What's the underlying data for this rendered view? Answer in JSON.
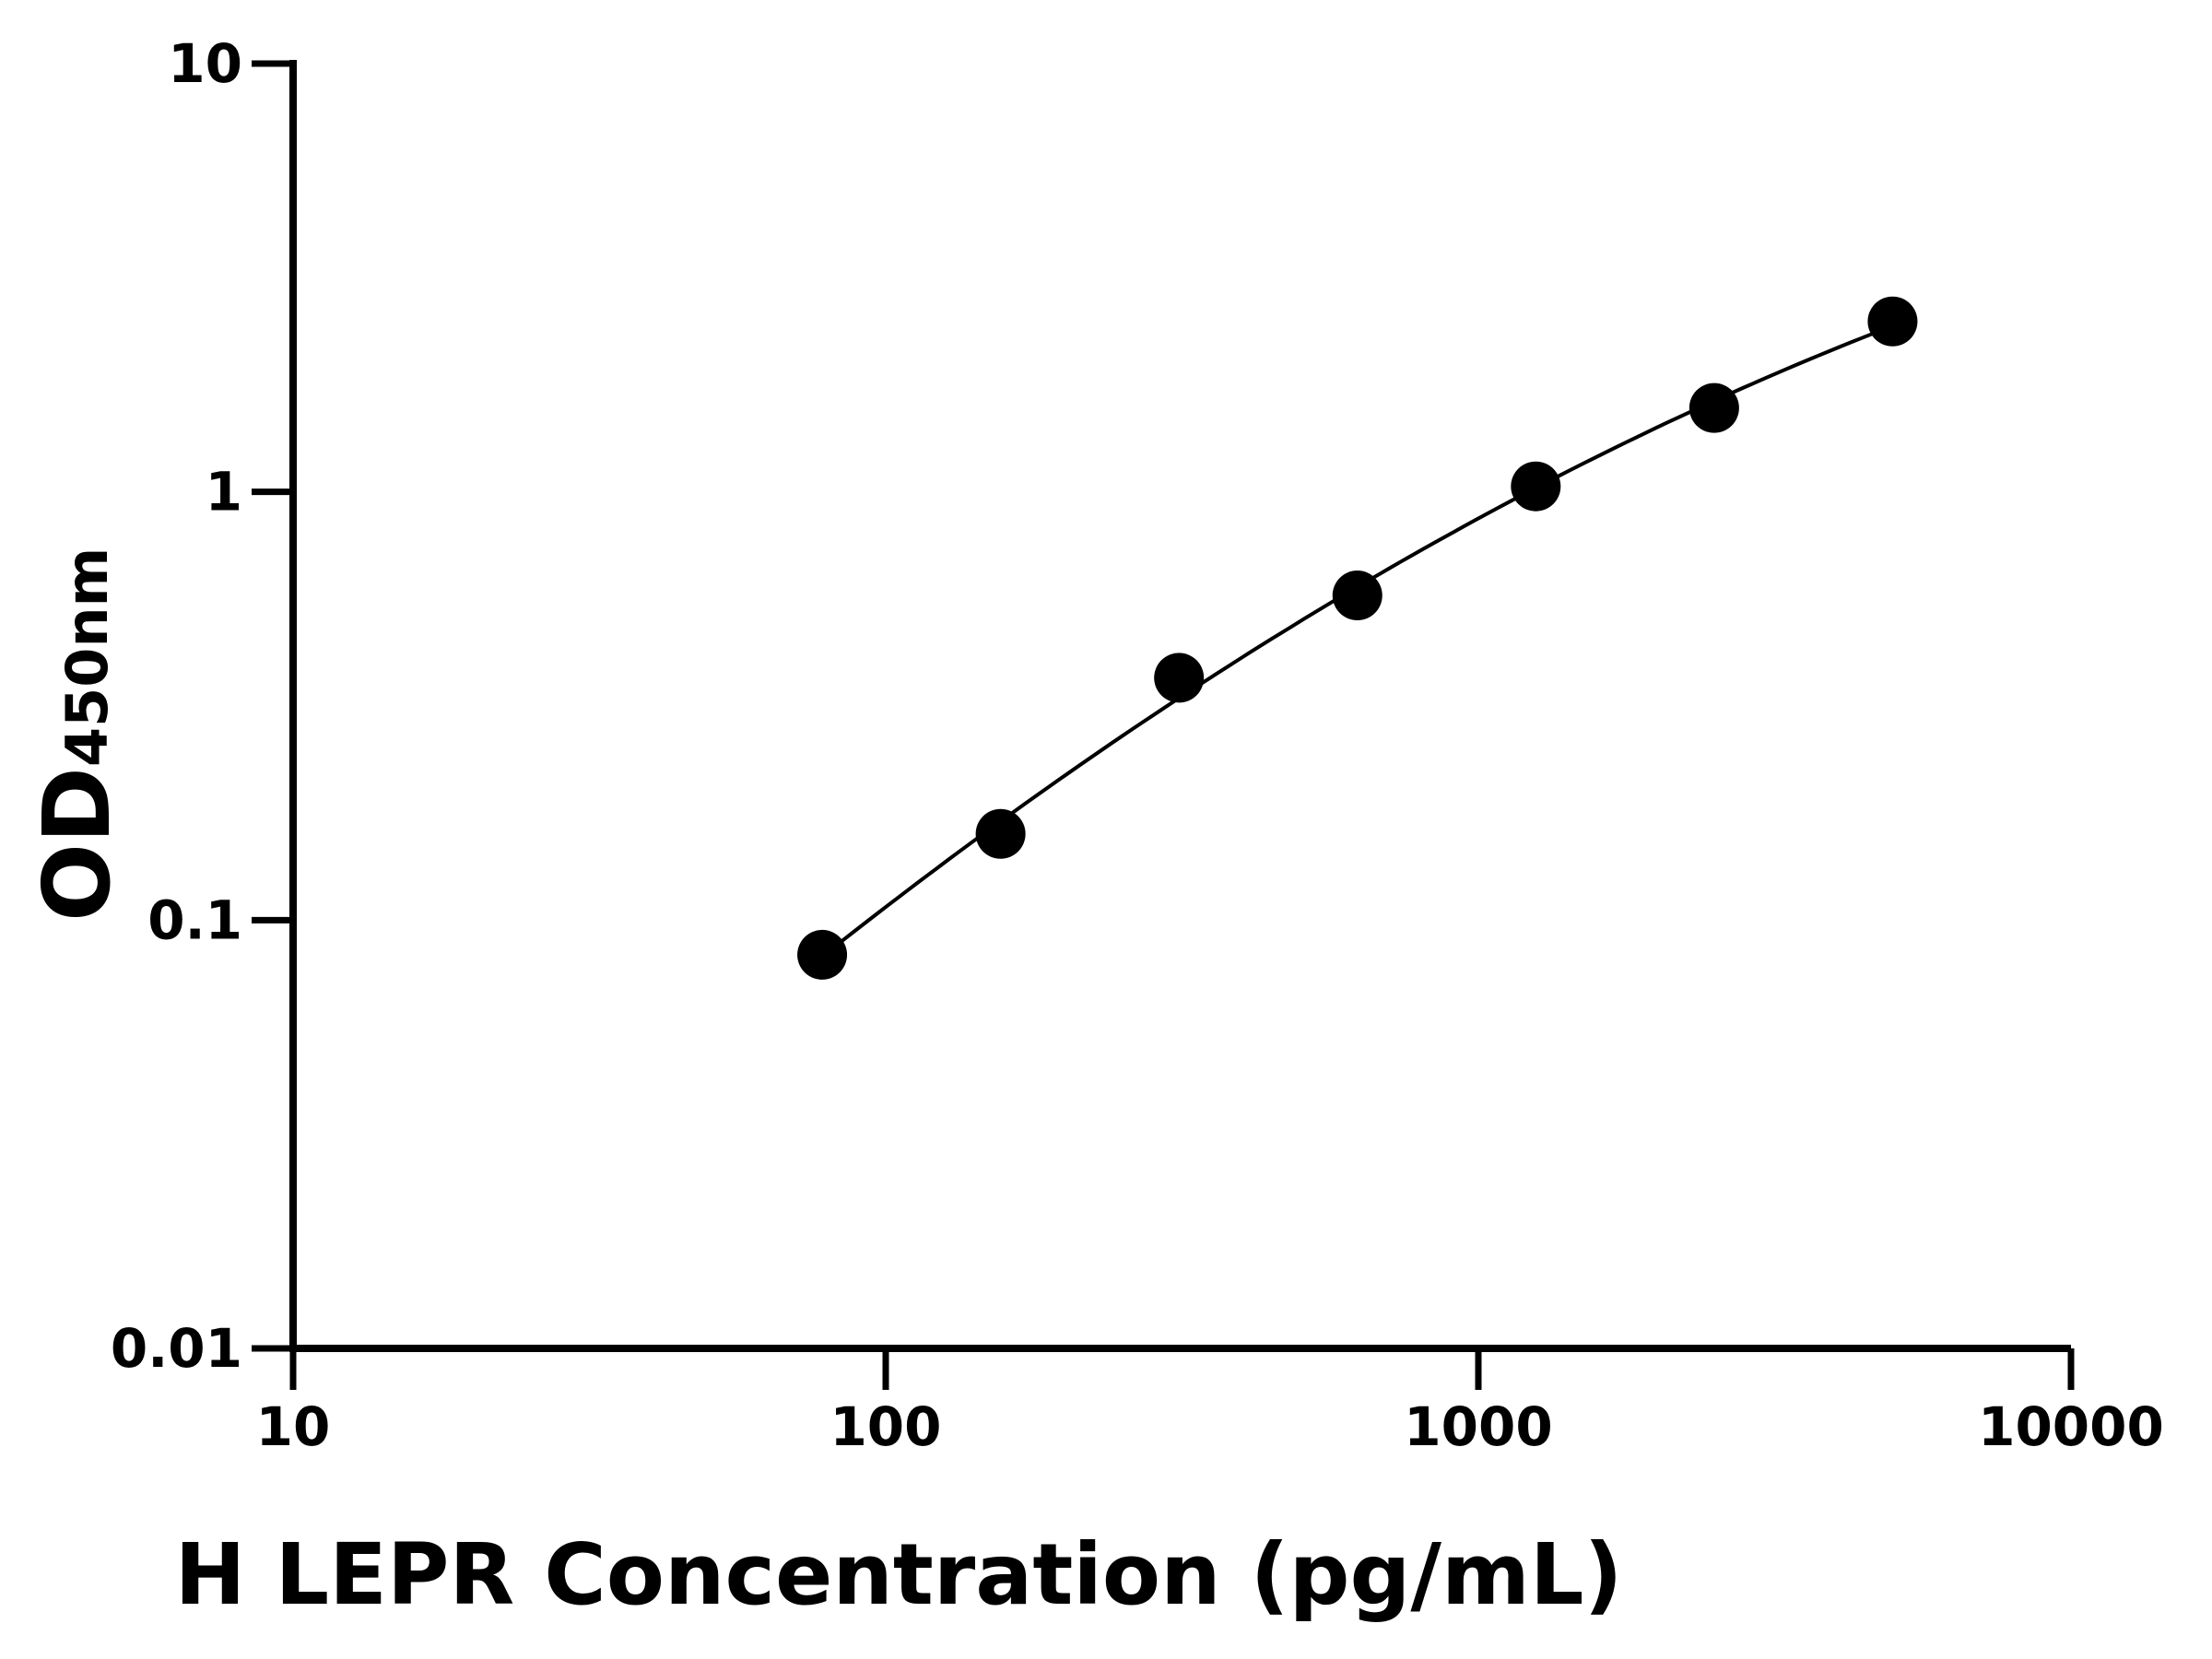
{
  "chart_data": {
    "type": "scatter",
    "title": "",
    "xlabel": "H LEPR Concentration (pg/mL)",
    "ylabel_main": "OD",
    "ylabel_sub": "450nm",
    "xscale": "log",
    "yscale": "log",
    "xlim": [
      10,
      10000
    ],
    "ylim": [
      0.01,
      10
    ],
    "xticks": [
      "10",
      "100",
      "1000",
      "10000"
    ],
    "yticks": [
      "0.01",
      "0.1",
      "1",
      "10"
    ],
    "grid": false,
    "legend": "none",
    "series": [
      {
        "x": [
          78.125,
          156.25,
          312.5,
          625,
          1250,
          2500,
          5000
        ],
        "y": [
          0.083,
          0.159,
          0.368,
          0.573,
          1.03,
          1.57,
          2.5
        ],
        "marker": "filled-circle",
        "fit_line": true
      }
    ],
    "colors": {
      "marker": "#000000",
      "line": "#000000",
      "axis": "#000000"
    }
  }
}
